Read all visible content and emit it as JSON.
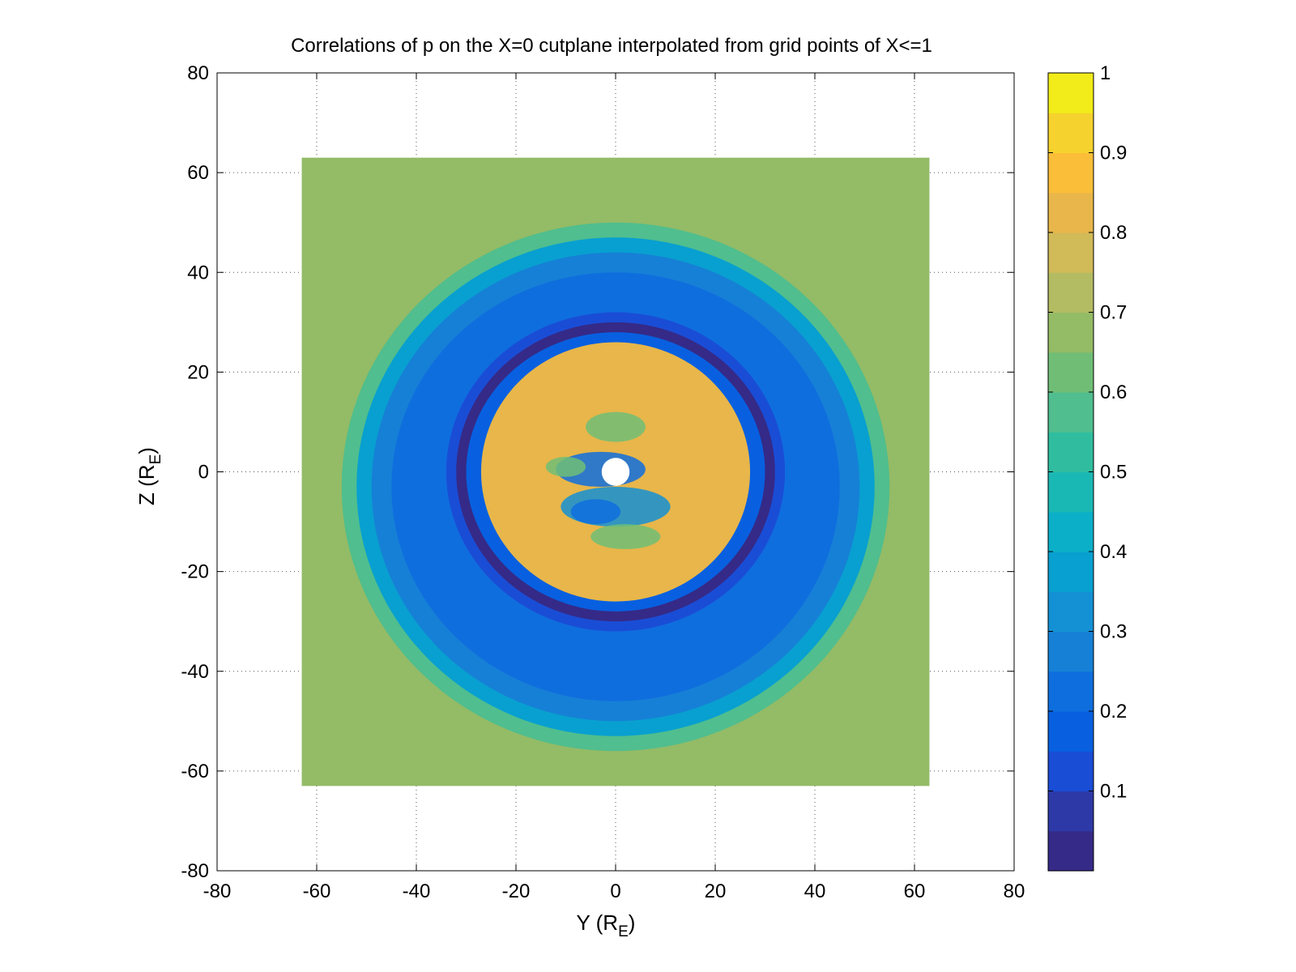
{
  "chart_data": {
    "type": "heatmap",
    "title": "Correlations of p on the X=0 cutplane interpolated from grid points of X<=1",
    "xlabel": {
      "main": "Y (R",
      "sub": "E",
      "end": ")"
    },
    "ylabel": {
      "main": "Z (R",
      "sub": "E",
      "end": ")"
    },
    "xlim": [
      -80,
      80
    ],
    "ylim": [
      -80,
      80
    ],
    "xticks": [
      -80,
      -60,
      -40,
      -20,
      0,
      20,
      40,
      60,
      80
    ],
    "yticks": [
      -80,
      -60,
      -40,
      -20,
      0,
      20,
      40,
      60,
      80
    ],
    "grid": "dotted",
    "data_extent": {
      "y": [
        -63,
        63
      ],
      "z": [
        -63,
        63
      ]
    },
    "background_value": 0.67,
    "hole": {
      "center": [
        0,
        0
      ],
      "radius": 2.8
    },
    "rings": [
      {
        "center": [
          0,
          -3
        ],
        "radius_y": 58,
        "radius_z": 56,
        "value": 0.67
      },
      {
        "center": [
          0,
          -3
        ],
        "radius_y": 55,
        "radius_z": 53,
        "value": 0.58
      },
      {
        "center": [
          0,
          -3
        ],
        "radius_y": 52,
        "radius_z": 50,
        "value": 0.38
      },
      {
        "center": [
          0,
          -3
        ],
        "radius_y": 49,
        "radius_z": 47,
        "value": 0.27
      },
      {
        "center": [
          0,
          -3
        ],
        "radius_y": 45,
        "radius_z": 43,
        "value": 0.2
      },
      {
        "center": [
          0,
          0
        ],
        "radius_y": 34,
        "radius_z": 32,
        "value": 0.12
      },
      {
        "center": [
          0,
          0
        ],
        "radius_y": 32,
        "radius_z": 30,
        "value": 0.03
      },
      {
        "center": [
          0,
          0
        ],
        "radius_y": 30,
        "radius_z": 28,
        "value": 0.18
      },
      {
        "center": [
          0,
          0
        ],
        "radius_y": 27,
        "radius_z": 26,
        "value": 0.82
      }
    ],
    "inner_features": [
      {
        "center": [
          0,
          9
        ],
        "radius_y": 6,
        "radius_z": 3,
        "value": 0.62
      },
      {
        "center": [
          -3,
          0.5
        ],
        "radius_y": 9,
        "radius_z": 3.5,
        "value": 0.2
      },
      {
        "center": [
          0,
          -7
        ],
        "radius_y": 11,
        "radius_z": 4,
        "value": 0.3
      },
      {
        "center": [
          -4,
          -8
        ],
        "radius_y": 5,
        "radius_z": 2.5,
        "value": 0.22
      },
      {
        "center": [
          2,
          -13
        ],
        "radius_y": 7,
        "radius_z": 2.5,
        "value": 0.62
      },
      {
        "center": [
          -10,
          1
        ],
        "radius_y": 4,
        "radius_z": 2,
        "value": 0.6
      }
    ],
    "colorbar": {
      "min": 0,
      "max": 1,
      "ticks": [
        0.1,
        0.2,
        0.3,
        0.4,
        0.5,
        0.6,
        0.7,
        0.8,
        0.9,
        1
      ],
      "tick_labels": [
        "0.1",
        "0.2",
        "0.3",
        "0.4",
        "0.5",
        "0.6",
        "0.7",
        "0.8",
        "0.9",
        "1"
      ],
      "levels": 20,
      "colors": [
        "#352a87",
        "#2d39a6",
        "#1a4dd6",
        "#0860e0",
        "#0f6ede",
        "#1680d6",
        "#1490d4",
        "#08a0d0",
        "#0bafc8",
        "#1ab8b4",
        "#30bd9f",
        "#50be8e",
        "#70be76",
        "#94bb66",
        "#b3bc62",
        "#d1ba58",
        "#e8b64a",
        "#fbbe38",
        "#f6d22e",
        "#f2ec1a"
      ]
    }
  }
}
